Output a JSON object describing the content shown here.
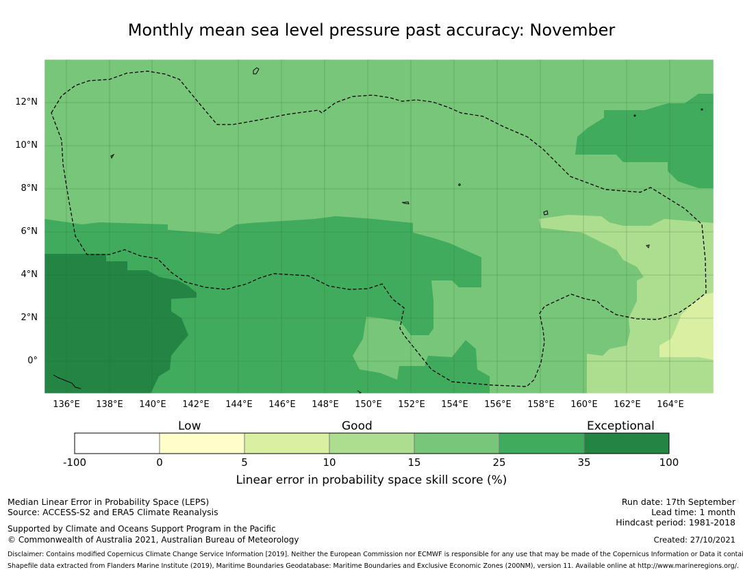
{
  "title": "Monthly mean sea level pressure past accuracy: November",
  "map": {
    "lon_range": [
      135,
      166
    ],
    "lat_range": [
      -1.5,
      14
    ],
    "lon_ticks": [
      "136°E",
      "138°E",
      "140°E",
      "142°E",
      "144°E",
      "146°E",
      "148°E",
      "150°E",
      "152°E",
      "154°E",
      "156°E",
      "158°E",
      "160°E",
      "162°E",
      "164°E"
    ],
    "lat_ticks": [
      "12°N",
      "10°N",
      "8°N",
      "6°N",
      "4°N",
      "2°N",
      "0°"
    ],
    "colors": {
      "c0": "#ffffff",
      "c5": "#ffffcc",
      "c10": "#d9f0a3",
      "c15": "#addd8e",
      "c25": "#78c679",
      "c35": "#41ab5d",
      "c100": "#238443"
    }
  },
  "colorbar": {
    "categories": [
      "Low",
      "Good",
      "Exceptional"
    ],
    "ticks": [
      "-100",
      "0",
      "5",
      "10",
      "15",
      "25",
      "35",
      "100"
    ],
    "label": "Linear error in probability space skill score (%)"
  },
  "footer": {
    "method": "Median Linear Error in Probability Space (LEPS)",
    "source": "Source: ACCESS-S2 and ERA5 Climate Reanalysis",
    "support": "Supported by Climate and Oceans Support Program in the Pacific",
    "copyright": "© Commonwealth of Australia 2021, Australian Bureau of Meteorology",
    "run_date": "Run date: 17th September",
    "lead_time": "Lead time: 1 month",
    "hindcast": "Hindcast period: 1981-2018",
    "created": "Created: 27/10/2021",
    "disclaimer": "Disclaimer: Contains modified Copernicus Climate Change Service Information [2019]. Neither the European Commission nor ECMWF is responsible for any use that may be made of the Copernicus Information or Data it contains.",
    "shapefile": "Shapefile data extracted from Flanders Marine Institute (2019), Maritime Boundaries Geodatabase: Maritime Boundaries and Exclusive Economic Zones (200NM), version 11. Available online at http://www.marineregions.org/."
  }
}
